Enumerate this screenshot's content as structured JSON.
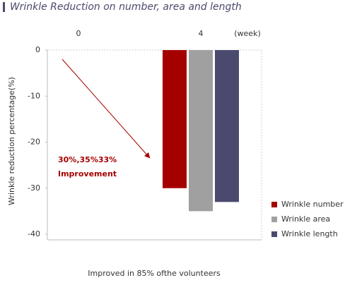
{
  "chart_data": {
    "type": "bar",
    "title": "Wrinkle Reduction on number, area and length",
    "categories": [
      "0",
      "4"
    ],
    "x_label": "(week)",
    "y_label": "Wrinkle reduction percentage(%)",
    "series": [
      {
        "name": "Wrinkle number",
        "color": "#a50000",
        "values": [
          null,
          -30
        ]
      },
      {
        "name": "Wrinkle area",
        "color": "#a0a0a0",
        "values": [
          null,
          -35
        ]
      },
      {
        "name": "Wrinkle length",
        "color": "#4a4a6e",
        "values": [
          null,
          -33
        ]
      }
    ],
    "ylim": [
      0,
      -40
    ],
    "yticks": [
      0,
      -10,
      -20,
      -30,
      -40
    ],
    "annotation": [
      "30%,35%33%",
      "Improvement"
    ],
    "footnote": "Improved in 85% ofthe volunteers"
  }
}
